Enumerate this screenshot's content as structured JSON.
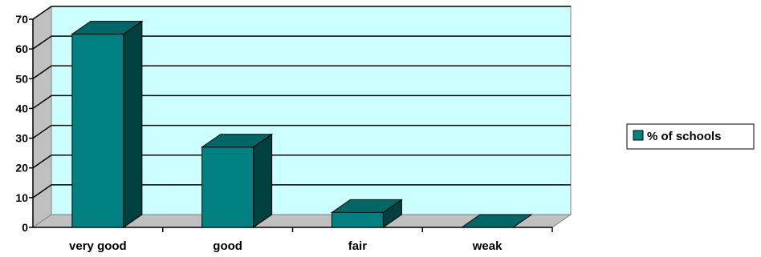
{
  "chart_data": {
    "type": "bar",
    "categories": [
      "very good",
      "good",
      "fair",
      "weak"
    ],
    "series": [
      {
        "name": "% of schools",
        "values": [
          65,
          27,
          5,
          0
        ]
      }
    ],
    "ylim": [
      0,
      70
    ],
    "yticks": [
      0,
      10,
      20,
      30,
      40,
      50,
      60,
      70
    ],
    "grid": true,
    "legend": "right",
    "style": "3d-column",
    "colors": {
      "bar_front": "#008080",
      "bar_side": "#00403f",
      "bar_top": "#006766",
      "plot_background": "#ccffff",
      "floor": "#c0c0c0",
      "gridline": "#000000"
    }
  }
}
